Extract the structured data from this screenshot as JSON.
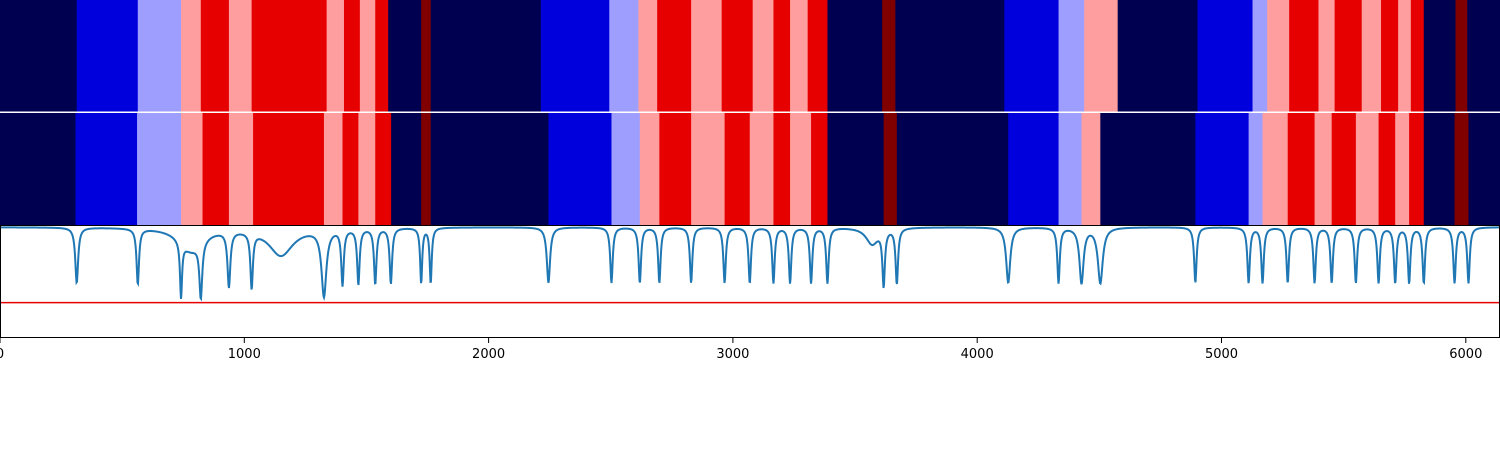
{
  "chart_data": {
    "type": "heatmap",
    "title": "",
    "xlabel": "",
    "ylabel": "",
    "xlim": [
      0,
      6140
    ],
    "xticks": [
      0,
      1000,
      2000,
      3000,
      4000,
      5000,
      6000
    ],
    "xtick_labels": [
      "0",
      "1000",
      "2000",
      "3000",
      "4000",
      "5000",
      "6000"
    ],
    "colors": {
      "c0": "#000050",
      "c1": "#0000dd",
      "c2": "#9e9eff",
      "c3": "#ff9e9e",
      "c4": "#e60000",
      "c5": "#800000"
    },
    "segment_tracks": [
      {
        "name": "track-top",
        "segments": [
          [
            0,
            314,
            "c0"
          ],
          [
            314,
            564,
            "c1"
          ],
          [
            564,
            741,
            "c2"
          ],
          [
            741,
            822,
            "c3"
          ],
          [
            822,
            937,
            "c4"
          ],
          [
            937,
            1030,
            "c3"
          ],
          [
            1030,
            1337,
            "c4"
          ],
          [
            1337,
            1408,
            "c3"
          ],
          [
            1408,
            1473,
            "c4"
          ],
          [
            1473,
            1536,
            "c3"
          ],
          [
            1536,
            1589,
            "c4"
          ],
          [
            1589,
            1724,
            "c0"
          ],
          [
            1724,
            1763,
            "c5"
          ],
          [
            1763,
            2214,
            "c0"
          ],
          [
            2214,
            2494,
            "c1"
          ],
          [
            2494,
            2613,
            "c2"
          ],
          [
            2613,
            2690,
            "c3"
          ],
          [
            2690,
            2829,
            "c4"
          ],
          [
            2829,
            2954,
            "c3"
          ],
          [
            2954,
            3081,
            "c4"
          ],
          [
            3081,
            3166,
            "c3"
          ],
          [
            3166,
            3234,
            "c4"
          ],
          [
            3234,
            3306,
            "c3"
          ],
          [
            3306,
            3387,
            "c4"
          ],
          [
            3387,
            3611,
            "c0"
          ],
          [
            3611,
            3665,
            "c5"
          ],
          [
            3665,
            4111,
            "c0"
          ],
          [
            4111,
            4333,
            "c1"
          ],
          [
            4333,
            4438,
            "c2"
          ],
          [
            4438,
            4575,
            "c3"
          ],
          [
            4575,
            4902,
            "c0"
          ],
          [
            4902,
            5127,
            "c1"
          ],
          [
            5127,
            5187,
            "c2"
          ],
          [
            5187,
            5277,
            "c3"
          ],
          [
            5277,
            5397,
            "c4"
          ],
          [
            5397,
            5463,
            "c3"
          ],
          [
            5463,
            5574,
            "c4"
          ],
          [
            5574,
            5653,
            "c3"
          ],
          [
            5653,
            5723,
            "c4"
          ],
          [
            5723,
            5775,
            "c3"
          ],
          [
            5775,
            5828,
            "c4"
          ],
          [
            5828,
            5958,
            "c0"
          ],
          [
            5958,
            6006,
            "c5"
          ],
          [
            6006,
            6140,
            "c0"
          ]
        ]
      },
      {
        "name": "track-bottom",
        "segments": [
          [
            0,
            309,
            "c0"
          ],
          [
            309,
            561,
            "c1"
          ],
          [
            561,
            741,
            "c2"
          ],
          [
            741,
            829,
            "c3"
          ],
          [
            829,
            937,
            "c4"
          ],
          [
            937,
            1036,
            "c3"
          ],
          [
            1036,
            1326,
            "c4"
          ],
          [
            1326,
            1402,
            "c3"
          ],
          [
            1402,
            1467,
            "c4"
          ],
          [
            1467,
            1536,
            "c3"
          ],
          [
            1536,
            1601,
            "c4"
          ],
          [
            1601,
            1724,
            "c0"
          ],
          [
            1724,
            1763,
            "c5"
          ],
          [
            1763,
            2245,
            "c0"
          ],
          [
            2245,
            2503,
            "c1"
          ],
          [
            2503,
            2619,
            "c2"
          ],
          [
            2619,
            2699,
            "c3"
          ],
          [
            2699,
            2829,
            "c4"
          ],
          [
            2829,
            2966,
            "c3"
          ],
          [
            2966,
            3069,
            "c4"
          ],
          [
            3069,
            3166,
            "c3"
          ],
          [
            3166,
            3234,
            "c4"
          ],
          [
            3234,
            3320,
            "c3"
          ],
          [
            3320,
            3387,
            "c4"
          ],
          [
            3387,
            3617,
            "c0"
          ],
          [
            3617,
            3671,
            "c5"
          ],
          [
            3671,
            4127,
            "c0"
          ],
          [
            4127,
            4333,
            "c1"
          ],
          [
            4333,
            4427,
            "c2"
          ],
          [
            4427,
            4504,
            "c3"
          ],
          [
            4504,
            4893,
            "c0"
          ],
          [
            4893,
            5111,
            "c1"
          ],
          [
            5111,
            5168,
            "c2"
          ],
          [
            5168,
            5271,
            "c3"
          ],
          [
            5271,
            5381,
            "c4"
          ],
          [
            5381,
            5451,
            "c3"
          ],
          [
            5451,
            5550,
            "c4"
          ],
          [
            5550,
            5643,
            "c3"
          ],
          [
            5643,
            5711,
            "c4"
          ],
          [
            5711,
            5768,
            "c3"
          ],
          [
            5768,
            5828,
            "c4"
          ],
          [
            5828,
            5954,
            "c0"
          ],
          [
            5954,
            6011,
            "c5"
          ],
          [
            6011,
            6140,
            "c0"
          ]
        ]
      }
    ],
    "signal": {
      "name": "signal",
      "color": "#1f77b4",
      "ylim": [
        0,
        1
      ],
      "baseline": 0.99,
      "dips": [
        [
          314,
          0.5,
          7
        ],
        [
          564,
          0.5,
          6
        ],
        [
          741,
          0.5,
          5
        ],
        [
          782,
          0.2,
          60
        ],
        [
          822,
          0.5,
          7
        ],
        [
          937,
          0.5,
          7
        ],
        [
          1030,
          0.5,
          6
        ],
        [
          1150,
          0.25,
          60
        ],
        [
          1326,
          0.6,
          12
        ],
        [
          1402,
          0.5,
          6
        ],
        [
          1467,
          0.5,
          6
        ],
        [
          1536,
          0.5,
          6
        ],
        [
          1600,
          0.5,
          6
        ],
        [
          1724,
          0.5,
          5
        ],
        [
          1763,
          0.5,
          5
        ],
        [
          2245,
          0.5,
          8
        ],
        [
          2503,
          0.5,
          6
        ],
        [
          2619,
          0.5,
          6
        ],
        [
          2699,
          0.5,
          6
        ],
        [
          2829,
          0.5,
          6
        ],
        [
          2966,
          0.5,
          6
        ],
        [
          3069,
          0.5,
          6
        ],
        [
          3166,
          0.5,
          6
        ],
        [
          3234,
          0.5,
          6
        ],
        [
          3320,
          0.5,
          6
        ],
        [
          3387,
          0.5,
          6
        ],
        [
          3570,
          0.15,
          30
        ],
        [
          3617,
          0.5,
          6
        ],
        [
          3671,
          0.5,
          6
        ],
        [
          4127,
          0.5,
          10
        ],
        [
          4333,
          0.5,
          6
        ],
        [
          4427,
          0.5,
          10
        ],
        [
          4504,
          0.5,
          12
        ],
        [
          4893,
          0.5,
          6
        ],
        [
          5111,
          0.5,
          6
        ],
        [
          5168,
          0.5,
          6
        ],
        [
          5271,
          0.5,
          6
        ],
        [
          5381,
          0.5,
          6
        ],
        [
          5451,
          0.5,
          6
        ],
        [
          5550,
          0.5,
          6
        ],
        [
          5643,
          0.5,
          6
        ],
        [
          5711,
          0.5,
          6
        ],
        [
          5768,
          0.5,
          6
        ],
        [
          5828,
          0.5,
          6
        ],
        [
          5954,
          0.5,
          6
        ],
        [
          6011,
          0.5,
          6
        ]
      ]
    },
    "threshold": {
      "value": 0.31,
      "color": "#e60000"
    }
  }
}
